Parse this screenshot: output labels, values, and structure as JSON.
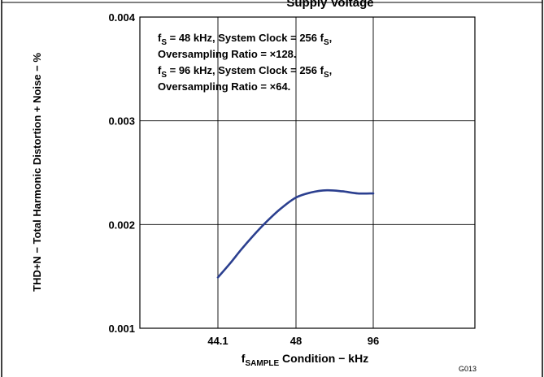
{
  "chart_data": {
    "type": "line",
    "title_fragment": "Supply Voltage",
    "xlabel": {
      "main": "f",
      "sub": "SAMPLE",
      "rest": " Condition − kHz"
    },
    "ylabel": "THD+N − Total Harmonic Distortion + Noise − %",
    "categories": [
      "44.1",
      "48",
      "96"
    ],
    "yticks": [
      "0.001",
      "0.002",
      "0.003",
      "0.004"
    ],
    "ylim": [
      0.001,
      0.004
    ],
    "grid": true,
    "series": [
      {
        "color": "#2b3f8f",
        "points": [
          {
            "x": 0,
            "y": 0.00149
          },
          {
            "x": 0.15,
            "y": 0.00162
          },
          {
            "x": 0.3,
            "y": 0.00176
          },
          {
            "x": 0.45,
            "y": 0.00189
          },
          {
            "x": 0.6,
            "y": 0.00201
          },
          {
            "x": 0.8,
            "y": 0.00215
          },
          {
            "x": 1.0,
            "y": 0.00226
          },
          {
            "x": 1.2,
            "y": 0.00231
          },
          {
            "x": 1.4,
            "y": 0.00233
          },
          {
            "x": 1.6,
            "y": 0.00232
          },
          {
            "x": 1.8,
            "y": 0.0023
          },
          {
            "x": 2.0,
            "y": 0.0023
          }
        ]
      }
    ],
    "annotation": [
      {
        "sym": "f",
        "sub": "S",
        "mid": " = 48 kHz, System Clock = 256 f",
        "sub2": "S",
        "end": ","
      },
      {
        "text": "Oversampling Ratio = ×128."
      },
      {
        "sym": "f",
        "sub": "S",
        "mid": " = 96 kHz, System Clock = 256 f",
        "sub2": "S",
        "end": ","
      },
      {
        "text": "Oversampling Ratio =  ×64."
      }
    ],
    "figure_id": "G013"
  }
}
